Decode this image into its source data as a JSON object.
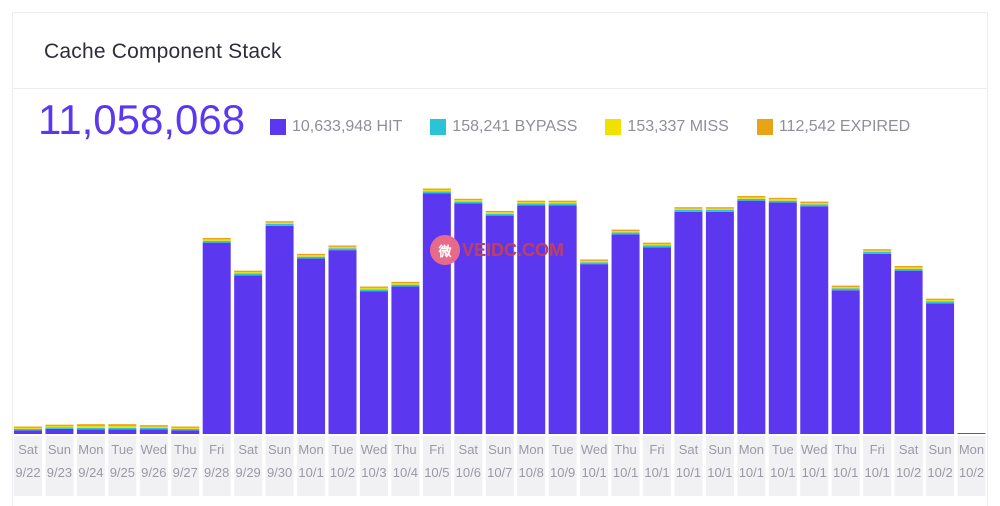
{
  "card": {
    "title": "Cache Component Stack",
    "total": "11,058,068"
  },
  "watermark": {
    "text": "VEIDC.COM"
  },
  "chart_data": {
    "type": "bar",
    "stacked": true,
    "grid": false,
    "legend_position": "top",
    "legend": [
      {
        "label": "10,633,948 HIT",
        "color": "#5b38f0"
      },
      {
        "label": "158,241 BYPASS",
        "color": "#2bc4d6"
      },
      {
        "label": "153,337 MISS",
        "color": "#f0e100"
      },
      {
        "label": "112,542 EXPIRED",
        "color": "#e8a317"
      }
    ],
    "categories_day": [
      "Sat",
      "Sun",
      "Mon",
      "Tue",
      "Wed",
      "Thu",
      "Fri",
      "Sat",
      "Sun",
      "Mon",
      "Tue",
      "Wed",
      "Thu",
      "Fri",
      "Sat",
      "Sun",
      "Mon",
      "Tue",
      "Wed",
      "Thu",
      "Fri",
      "Sat",
      "Sun",
      "Mon",
      "Tue",
      "Wed",
      "Thu",
      "Fri",
      "Sat",
      "Sun",
      "Mon"
    ],
    "categories_date": [
      "9/22",
      "9/23",
      "9/24",
      "9/25",
      "9/26",
      "9/27",
      "9/28",
      "9/29",
      "9/30",
      "10/1",
      "10/2",
      "10/3",
      "10/4",
      "10/5",
      "10/6",
      "10/7",
      "10/8",
      "10/9",
      "10/1",
      "10/1",
      "10/1",
      "10/1",
      "10/1",
      "10/1",
      "10/1",
      "10/1",
      "10/1",
      "10/1",
      "10/2",
      "10/2",
      "10/2"
    ],
    "ylim": [
      0,
      570000
    ],
    "series": [
      {
        "name": "HIT",
        "color": "#5b38f0",
        "values": [
          8000,
          11000,
          10000,
          10000,
          10000,
          8000,
          410000,
          340000,
          446000,
          376000,
          394000,
          306000,
          316000,
          516000,
          494000,
          468000,
          490000,
          490000,
          364000,
          428000,
          400000,
          476000,
          476000,
          500000,
          496000,
          488000,
          308000,
          386000,
          350000,
          280000,
          2000
        ]
      },
      {
        "name": "BYPASS",
        "color": "#2bc4d6",
        "values": [
          3000,
          3000,
          3000,
          3000,
          3000,
          3000,
          4000,
          4000,
          4000,
          4000,
          4000,
          4000,
          4000,
          4000,
          4000,
          4000,
          4000,
          4000,
          4000,
          4000,
          4000,
          4000,
          4000,
          4000,
          4000,
          4000,
          4000,
          4000,
          4000,
          4000,
          0
        ]
      },
      {
        "name": "MISS",
        "color": "#f0e100",
        "values": [
          2000,
          3000,
          4000,
          4000,
          3000,
          2000,
          3000,
          3000,
          3000,
          3000,
          3000,
          3000,
          3000,
          3000,
          3000,
          3000,
          3000,
          3000,
          3000,
          3000,
          3000,
          3000,
          3000,
          3000,
          3000,
          3000,
          3000,
          3000,
          3000,
          3000,
          0
        ]
      },
      {
        "name": "EXPIRED",
        "color": "#e8a317",
        "values": [
          3000,
          3000,
          4000,
          4000,
          3000,
          3000,
          3000,
          3000,
          3000,
          3000,
          3000,
          3000,
          3000,
          3000,
          3000,
          3000,
          3000,
          3000,
          3000,
          3000,
          3000,
          3000,
          3000,
          3000,
          3000,
          3000,
          3000,
          3000,
          3000,
          3000,
          0
        ]
      }
    ]
  }
}
